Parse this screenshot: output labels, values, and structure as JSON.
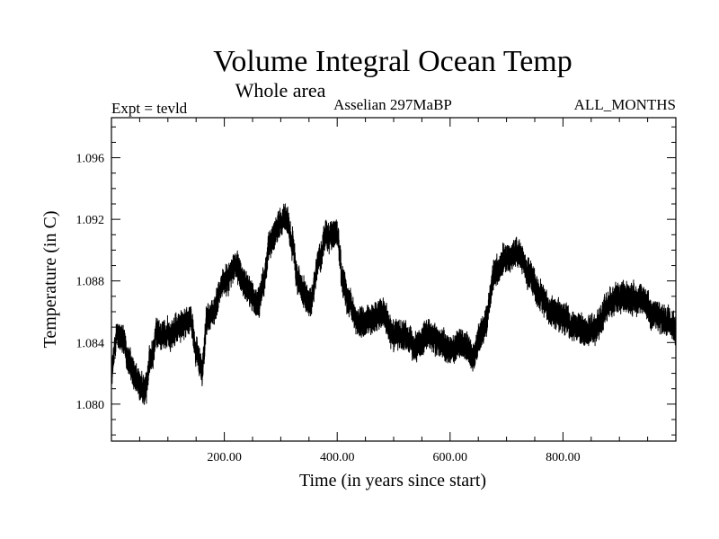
{
  "chart_data": {
    "type": "line",
    "title": "Volume Integral Ocean Temp",
    "subtitle": "Whole area",
    "expt": "Expt = tevld",
    "label_center": "Asselian 297MaBP",
    "label_right": "ALL_MONTHS",
    "xlabel": "Time (in years since start)",
    "ylabel": "Temperature (in C)",
    "xlim": [
      0,
      1000
    ],
    "ylim": [
      1.0776,
      1.0986
    ],
    "xticks": [
      200,
      400,
      600,
      800
    ],
    "xtick_labels": [
      "200.00",
      "400.00",
      "600.00",
      "800.00"
    ],
    "yticks": [
      1.08,
      1.084,
      1.088,
      1.092,
      1.096
    ],
    "ytick_labels": [
      "1.080",
      "1.084",
      "1.088",
      "1.092",
      "1.096"
    ],
    "series": [
      {
        "name": "volume integral ocean temp",
        "color": "#000000",
        "anchors_x": [
          0,
          10,
          20,
          30,
          40,
          50,
          60,
          70,
          80,
          100,
          120,
          140,
          150,
          160,
          170,
          180,
          200,
          220,
          240,
          260,
          270,
          280,
          300,
          310,
          320,
          330,
          350,
          370,
          380,
          400,
          410,
          420,
          440,
          460,
          480,
          500,
          520,
          540,
          560,
          580,
          600,
          620,
          640,
          660,
          680,
          700,
          720,
          740,
          760,
          780,
          800,
          820,
          840,
          860,
          880,
          900,
          920,
          940,
          960,
          980,
          999
        ],
        "anchors_y": [
          1.0822,
          1.0845,
          1.0842,
          1.0828,
          1.082,
          1.0812,
          1.081,
          1.083,
          1.0845,
          1.0845,
          1.085,
          1.0855,
          1.0835,
          1.0822,
          1.0855,
          1.086,
          1.088,
          1.089,
          1.0875,
          1.0865,
          1.088,
          1.0905,
          1.0918,
          1.092,
          1.0905,
          1.088,
          1.0865,
          1.0895,
          1.091,
          1.091,
          1.088,
          1.0865,
          1.0852,
          1.0855,
          1.086,
          1.0845,
          1.0845,
          1.0838,
          1.0845,
          1.084,
          1.0835,
          1.084,
          1.0832,
          1.085,
          1.0885,
          1.0895,
          1.0898,
          1.0885,
          1.087,
          1.086,
          1.0857,
          1.085,
          1.0847,
          1.085,
          1.0865,
          1.087,
          1.0868,
          1.0868,
          1.0858,
          1.0855,
          1.085
        ],
        "noise_amplitude": 0.0013,
        "samples": 12000
      }
    ]
  }
}
